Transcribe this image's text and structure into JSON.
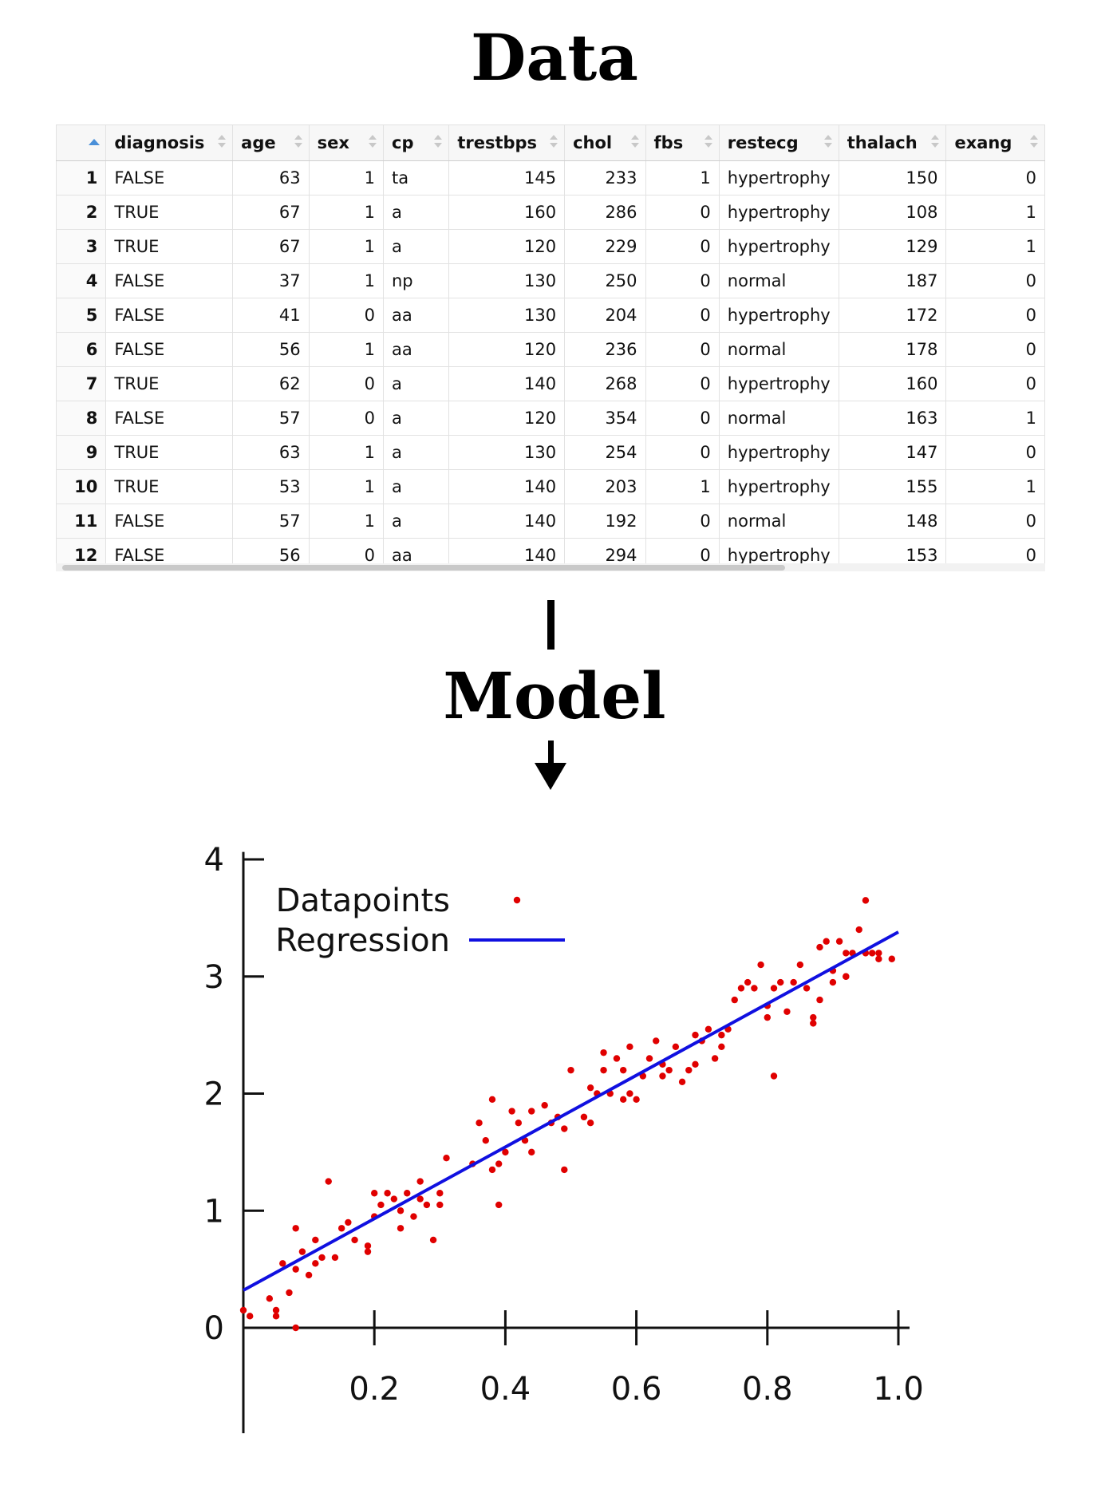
{
  "headings": {
    "data": "Data",
    "model": "Model"
  },
  "table": {
    "columns": [
      "diagnosis",
      "age",
      "sex",
      "cp",
      "trestbps",
      "chol",
      "fbs",
      "restecg",
      "thalach",
      "exang"
    ],
    "rows": [
      [
        "1",
        "FALSE",
        "63",
        "1",
        "ta",
        "145",
        "233",
        "1",
        "hypertrophy",
        "150",
        "0"
      ],
      [
        "2",
        "TRUE",
        "67",
        "1",
        "a",
        "160",
        "286",
        "0",
        "hypertrophy",
        "108",
        "1"
      ],
      [
        "3",
        "TRUE",
        "67",
        "1",
        "a",
        "120",
        "229",
        "0",
        "hypertrophy",
        "129",
        "1"
      ],
      [
        "4",
        "FALSE",
        "37",
        "1",
        "np",
        "130",
        "250",
        "0",
        "normal",
        "187",
        "0"
      ],
      [
        "5",
        "FALSE",
        "41",
        "0",
        "aa",
        "130",
        "204",
        "0",
        "hypertrophy",
        "172",
        "0"
      ],
      [
        "6",
        "FALSE",
        "56",
        "1",
        "aa",
        "120",
        "236",
        "0",
        "normal",
        "178",
        "0"
      ],
      [
        "7",
        "TRUE",
        "62",
        "0",
        "a",
        "140",
        "268",
        "0",
        "hypertrophy",
        "160",
        "0"
      ],
      [
        "8",
        "FALSE",
        "57",
        "0",
        "a",
        "120",
        "354",
        "0",
        "normal",
        "163",
        "1"
      ],
      [
        "9",
        "TRUE",
        "63",
        "1",
        "a",
        "130",
        "254",
        "0",
        "hypertrophy",
        "147",
        "0"
      ],
      [
        "10",
        "TRUE",
        "53",
        "1",
        "a",
        "140",
        "203",
        "1",
        "hypertrophy",
        "155",
        "1"
      ],
      [
        "11",
        "FALSE",
        "57",
        "1",
        "a",
        "140",
        "192",
        "0",
        "normal",
        "148",
        "0"
      ],
      [
        "12",
        "FALSE",
        "56",
        "0",
        "aa",
        "140",
        "294",
        "0",
        "hypertrophy",
        "153",
        "0"
      ]
    ],
    "sort_column": "index",
    "sort_direction": "ascending"
  },
  "chart_data": {
    "type": "scatter",
    "title": "",
    "xlabel": "",
    "ylabel": "",
    "xlim": [
      0,
      1.02
    ],
    "ylim": [
      -0.9,
      4.05
    ],
    "x_ticks": [
      "0.2",
      "0.4",
      "0.6",
      "0.8",
      "1.0"
    ],
    "y_ticks": [
      "0",
      "1",
      "2",
      "3",
      "4"
    ],
    "legend_position": "top-left",
    "grid": false,
    "series": [
      {
        "name": "Datapoints",
        "kind": "points",
        "color": "#e00000",
        "x": [
          0.0,
          0.01,
          0.04,
          0.05,
          0.06,
          0.07,
          0.08,
          0.08,
          0.09,
          0.1,
          0.11,
          0.11,
          0.13,
          0.14,
          0.15,
          0.17,
          0.19,
          0.2,
          0.2,
          0.21,
          0.22,
          0.23,
          0.24,
          0.25,
          0.26,
          0.27,
          0.27,
          0.28,
          0.29,
          0.3,
          0.31,
          0.36,
          0.37,
          0.38,
          0.38,
          0.39,
          0.4,
          0.41,
          0.42,
          0.43,
          0.44,
          0.46,
          0.47,
          0.48,
          0.49,
          0.5,
          0.52,
          0.53,
          0.54,
          0.55,
          0.55,
          0.56,
          0.57,
          0.58,
          0.58,
          0.59,
          0.6,
          0.61,
          0.62,
          0.63,
          0.64,
          0.65,
          0.66,
          0.67,
          0.68,
          0.69,
          0.7,
          0.71,
          0.72,
          0.73,
          0.74,
          0.75,
          0.76,
          0.77,
          0.78,
          0.79,
          0.8,
          0.8,
          0.81,
          0.82,
          0.83,
          0.84,
          0.85,
          0.86,
          0.87,
          0.88,
          0.88,
          0.89,
          0.9,
          0.9,
          0.91,
          0.92,
          0.92,
          0.93,
          0.94,
          0.95,
          0.95,
          0.97,
          0.97,
          0.99,
          0.05,
          0.08,
          0.12,
          0.16,
          0.19,
          0.24,
          0.3,
          0.35,
          0.39,
          0.44,
          0.49,
          0.53,
          0.59,
          0.64,
          0.69,
          0.73,
          0.81,
          0.87,
          0.92,
          0.96
        ],
        "y": [
          0.15,
          0.1,
          0.25,
          0.1,
          0.55,
          0.3,
          0.85,
          0.5,
          0.65,
          0.45,
          0.55,
          0.75,
          1.25,
          0.6,
          0.85,
          0.75,
          0.65,
          0.95,
          1.15,
          1.05,
          1.15,
          1.1,
          1.0,
          1.15,
          0.95,
          1.25,
          1.1,
          1.05,
          0.75,
          1.15,
          1.45,
          1.75,
          1.6,
          1.35,
          1.95,
          1.4,
          1.5,
          1.85,
          1.75,
          1.6,
          1.85,
          1.9,
          1.75,
          1.8,
          1.35,
          2.2,
          1.8,
          1.75,
          2.0,
          2.2,
          2.35,
          2.0,
          2.3,
          2.2,
          1.95,
          2.4,
          1.95,
          2.15,
          2.3,
          2.45,
          2.25,
          2.2,
          2.4,
          2.1,
          2.2,
          2.5,
          2.45,
          2.55,
          2.3,
          2.4,
          2.55,
          2.8,
          2.9,
          2.95,
          2.9,
          3.1,
          2.65,
          2.75,
          2.9,
          2.95,
          2.7,
          2.95,
          3.1,
          2.9,
          2.65,
          3.25,
          2.8,
          3.3,
          3.05,
          2.95,
          3.3,
          3.0,
          3.2,
          3.2,
          3.4,
          3.2,
          3.65,
          3.2,
          3.15,
          3.15,
          0.15,
          0.0,
          0.6,
          0.9,
          0.7,
          0.85,
          1.05,
          1.4,
          1.05,
          1.5,
          1.7,
          2.05,
          2.0,
          2.15,
          2.25,
          2.5,
          2.15,
          2.6,
          3.0,
          3.2
        ]
      },
      {
        "name": "Regression",
        "kind": "line",
        "color": "#1010e0",
        "x": [
          0.0,
          1.0
        ],
        "y": [
          0.32,
          3.38
        ]
      }
    ]
  }
}
